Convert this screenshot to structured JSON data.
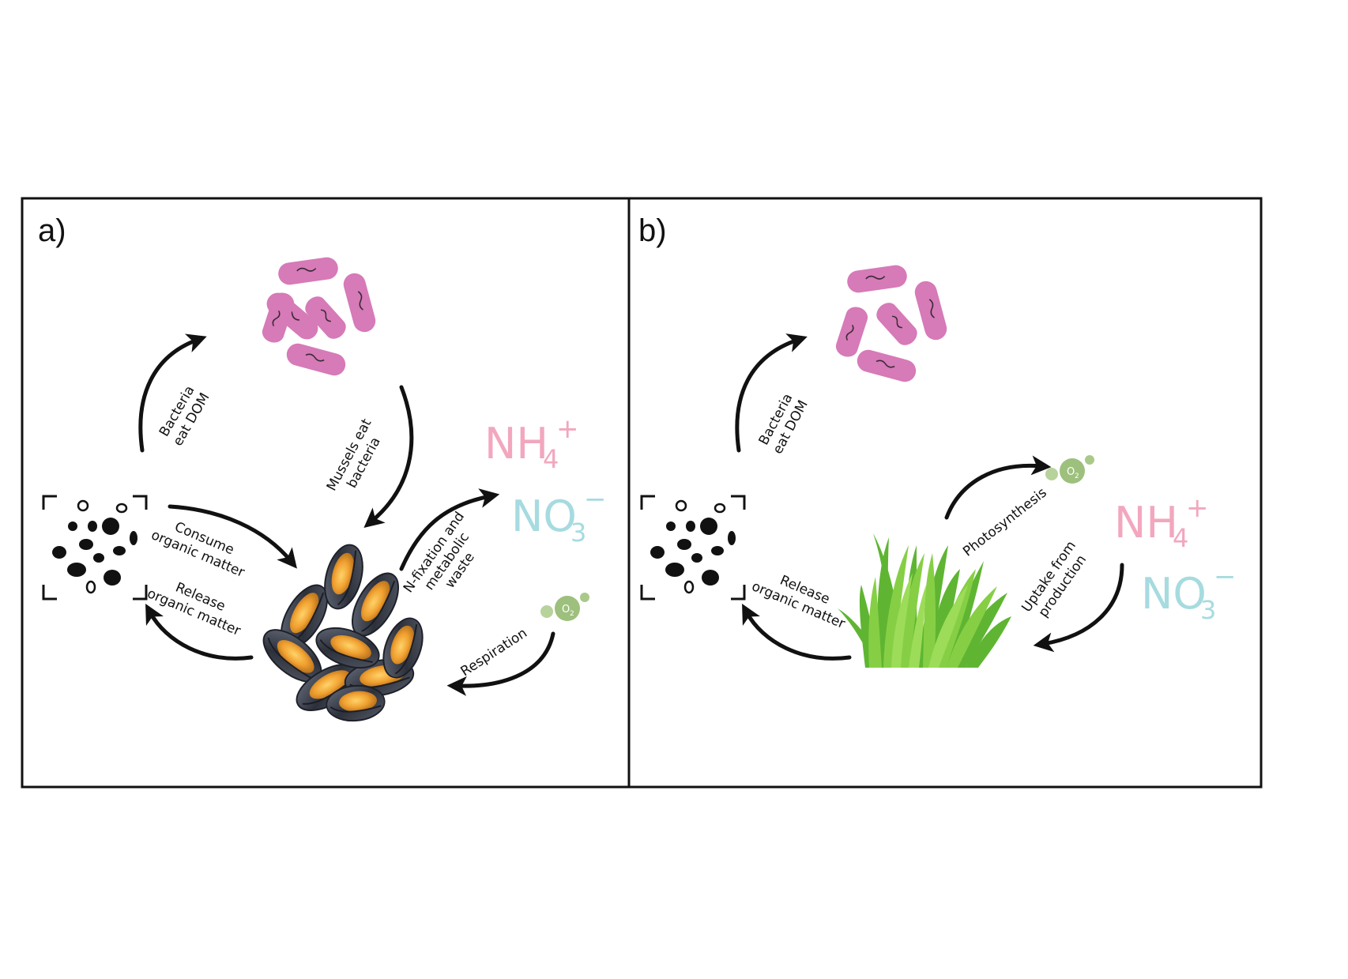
{
  "colors": {
    "bacteria": "#d67ab8",
    "ammonium": "#f2a7be",
    "nitrate": "#a6dbe0",
    "oxygen": "#9dc07d",
    "grass_light": "#8ed14a",
    "grass_dark": "#4aa82a",
    "mussel_shell": "#3b3f4a",
    "mussel_flesh": "#f0a030",
    "arrow": "#111111"
  },
  "panel_a": {
    "letter": "a)",
    "labels": {
      "bacteria_eat_dom": [
        "Bacteria",
        "eat DOM"
      ],
      "mussels_eat_bacteria": [
        "Mussels eat",
        "bacteria"
      ],
      "consume_organic_matter": [
        "Consume",
        "organic matter"
      ],
      "release_organic_matter": [
        "Release",
        "organic matter"
      ],
      "n_fixation": [
        "N-fixation and",
        "metabolic",
        "waste"
      ],
      "respiration": "Respiration"
    },
    "ions": {
      "ammonium": {
        "base": "NH",
        "sub": "4",
        "sup": "+"
      },
      "nitrate": {
        "base": "NO",
        "sub": "3",
        "sup": "−"
      }
    },
    "oxygen": {
      "base": "O",
      "sub": "2"
    }
  },
  "panel_b": {
    "letter": "b)",
    "labels": {
      "bacteria_eat_dom": [
        "Bacteria",
        "eat DOM"
      ],
      "release_organic_matter": [
        "Release",
        "organic matter"
      ],
      "photosynthesis": "Photosynthesis",
      "uptake_from_production": [
        "Uptake from",
        "production"
      ]
    },
    "ions": {
      "ammonium": {
        "base": "NH",
        "sub": "4",
        "sup": "+"
      },
      "nitrate": {
        "base": "NO",
        "sub": "3",
        "sup": "−"
      }
    },
    "oxygen": {
      "base": "O",
      "sub": "2"
    }
  }
}
